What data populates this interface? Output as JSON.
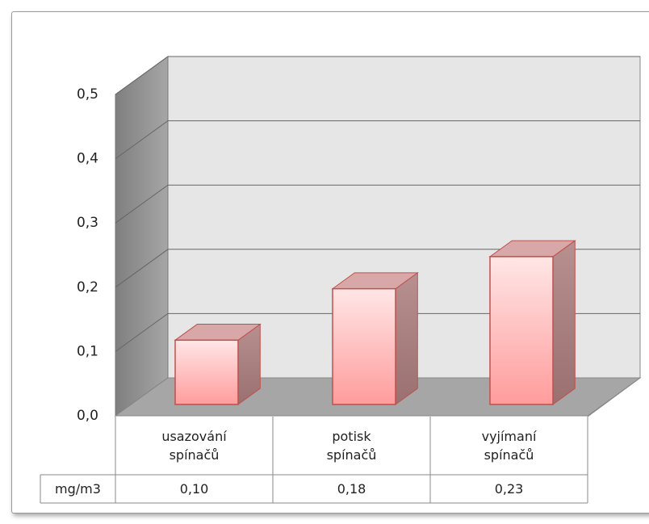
{
  "chart_data": {
    "type": "bar",
    "categories": [
      "usazování spínačů",
      "potisk spínačů",
      "vyjímaní spínačů"
    ],
    "series": [
      {
        "name": "mg/m3",
        "color": "#ff9c9c",
        "values": [
          0.1,
          0.18,
          0.23
        ],
        "value_labels": [
          "0,10",
          "0,18",
          "0,23"
        ]
      }
    ],
    "ylim": [
      0,
      0.5
    ],
    "yticks": [
      {
        "value": 0,
        "label": "0,0"
      },
      {
        "value": 0.1,
        "label": "0,1"
      },
      {
        "value": 0.2,
        "label": "0,2"
      },
      {
        "value": 0.3,
        "label": "0,3"
      },
      {
        "value": 0.4,
        "label": "0,4"
      },
      {
        "value": 0.5,
        "label": "0,5"
      }
    ],
    "grid": true
  }
}
